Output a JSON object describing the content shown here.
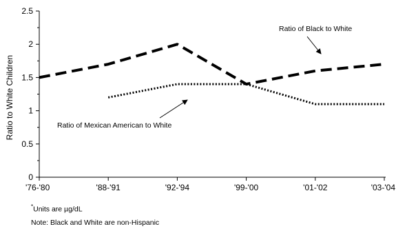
{
  "chart_data": {
    "type": "line",
    "categories": [
      "'76-'80",
      "'88-'91",
      "'92-'94",
      "'99-'00",
      "'01-'02",
      "'03-'04"
    ],
    "ylabel": "Ratio to White Children",
    "ylim": [
      0,
      2.5
    ],
    "yticks": [
      "0",
      "0.5",
      "1",
      "1.5",
      "2",
      "2.5"
    ],
    "grid": false,
    "series": [
      {
        "name": "Ratio of Black to White",
        "values": [
          1.5,
          1.7,
          2.0,
          1.4,
          1.6,
          1.7
        ],
        "style": "dashed",
        "color": "#000000"
      },
      {
        "name": "Ratio of Mexican American to White",
        "values": [
          null,
          1.2,
          1.4,
          1.4,
          1.1,
          1.1
        ],
        "style": "dotted",
        "color": "#000000"
      }
    ],
    "annotations": [
      {
        "text": "Ratio of Black to White",
        "series": 0
      },
      {
        "text": "Ratio of Mexican American to White",
        "series": 1
      }
    ]
  },
  "notes": {
    "units_marker": "*",
    "units": "Units are µg/dL",
    "race": "Note: Black and White are non-Hispanic"
  }
}
